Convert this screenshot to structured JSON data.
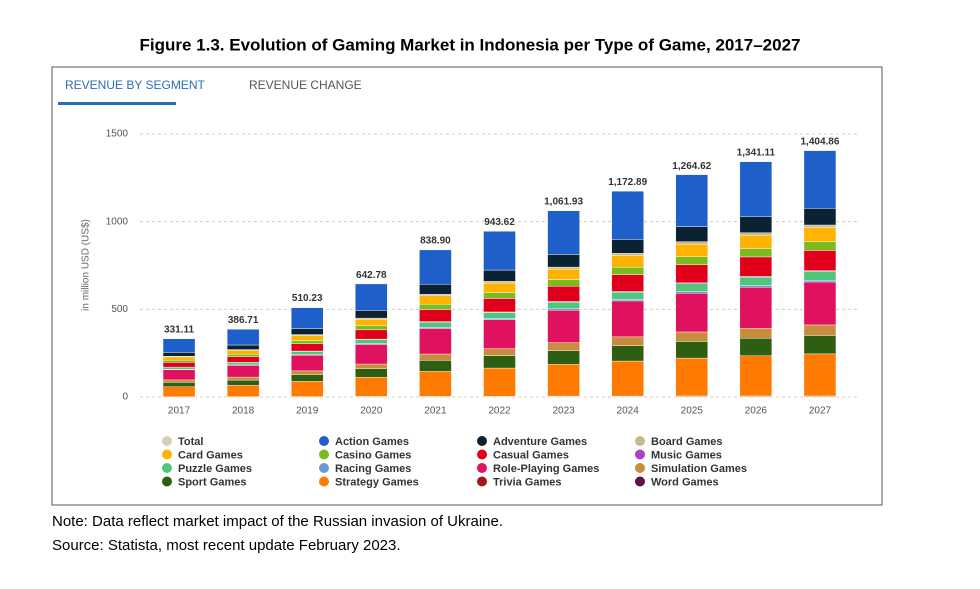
{
  "tabs": [
    "REVENUE BY SEGMENT",
    "REVENUE CHANGE"
  ],
  "note": "Note: Data reflect market impact of the Russian invasion of Ukraine.",
  "source": "Source: Statista, most recent update February 2023.",
  "chart_data": {
    "type": "stacked_bar",
    "title": "Figure 1.3. Evolution of Gaming Market in Indonesia per Type of Game, 2017–2027",
    "ylabel": "in million USD (US$)",
    "categories": [
      "2017",
      "2018",
      "2019",
      "2020",
      "2021",
      "2022",
      "2023",
      "2024",
      "2025",
      "2026",
      "2027"
    ],
    "ylim": [
      0,
      1500
    ],
    "yticks": [
      0,
      500,
      1000,
      1500
    ],
    "grid": true,
    "total": {
      "name": "Total",
      "color": "#d6ceb8",
      "values": [
        331.11,
        386.71,
        510.23,
        642.78,
        838.9,
        943.62,
        1061.93,
        1172.89,
        1264.62,
        1341.11,
        1404.86
      ],
      "value_labels": [
        "331.11",
        "386.71",
        "510.23",
        "642.78",
        "838.90",
        "943.62",
        "1,061.93",
        "1,172.89",
        "1,264.62",
        "1,341.11",
        "1,404.86"
      ]
    },
    "series": [
      {
        "name": "Action Games",
        "color": "#1f5fc9",
        "values": [
          78,
          90,
          119,
          151,
          196,
          221,
          249,
          275,
          296,
          314,
          329
        ]
      },
      {
        "name": "Adventure Games",
        "color": "#0b2233",
        "values": [
          22,
          26,
          34,
          44,
          57,
          64,
          72,
          79,
          86,
          91,
          95
        ]
      },
      {
        "name": "Board Games",
        "color": "#c8b98f",
        "values": [
          4,
          4,
          5,
          7,
          9,
          10,
          11,
          13,
          14,
          14,
          15
        ]
      },
      {
        "name": "Card Games",
        "color": "#ffb300",
        "values": [
          19,
          22,
          29,
          37,
          48,
          54,
          60,
          67,
          72,
          76,
          80
        ]
      },
      {
        "name": "Casino Games",
        "color": "#7cbb1e",
        "values": [
          12,
          14,
          18,
          23,
          30,
          34,
          38,
          42,
          45,
          48,
          50
        ]
      },
      {
        "name": "Casual Games",
        "color": "#e0001b",
        "values": [
          27,
          32,
          42,
          53,
          69,
          77,
          87,
          96,
          104,
          110,
          115
        ]
      },
      {
        "name": "Music Games",
        "color": "#b23fbf",
        "values": [
          1,
          1,
          2,
          2,
          3,
          3,
          4,
          4,
          5,
          5,
          5
        ]
      },
      {
        "name": "Puzzle Games",
        "color": "#4fc77a",
        "values": [
          12,
          14,
          18,
          23,
          30,
          34,
          38,
          42,
          45,
          48,
          50
        ]
      },
      {
        "name": "Racing Games",
        "color": "#6a9bd8",
        "values": [
          2,
          3,
          4,
          5,
          6,
          7,
          8,
          8,
          9,
          10,
          10
        ]
      },
      {
        "name": "Role-Playing Games",
        "color": "#e0115f",
        "values": [
          58,
          67,
          89,
          112,
          146,
          165,
          185,
          205,
          221,
          234,
          245
        ]
      },
      {
        "name": "Simulation Games",
        "color": "#c98c3d",
        "values": [
          14,
          17,
          22,
          27,
          36,
          40,
          45,
          50,
          54,
          57,
          60
        ]
      },
      {
        "name": "Sport Games",
        "color": "#2e5e12",
        "values": [
          25,
          29,
          38,
          48,
          63,
          71,
          79,
          88,
          95,
          100,
          105
        ]
      },
      {
        "name": "Strategy Games",
        "color": "#ff7a00",
        "values": [
          57,
          66,
          87,
          110,
          143,
          161,
          181,
          200,
          216,
          229,
          240
        ]
      },
      {
        "name": "Trivia Games",
        "color": "#a6151a",
        "values": [
          1,
          1,
          1,
          2,
          2,
          3,
          3,
          3,
          4,
          4,
          4
        ]
      },
      {
        "name": "Word Games",
        "color": "#5a1446",
        "values": [
          0.5,
          0.5,
          1,
          1,
          1,
          1,
          2,
          2,
          2,
          2,
          2
        ]
      }
    ]
  }
}
